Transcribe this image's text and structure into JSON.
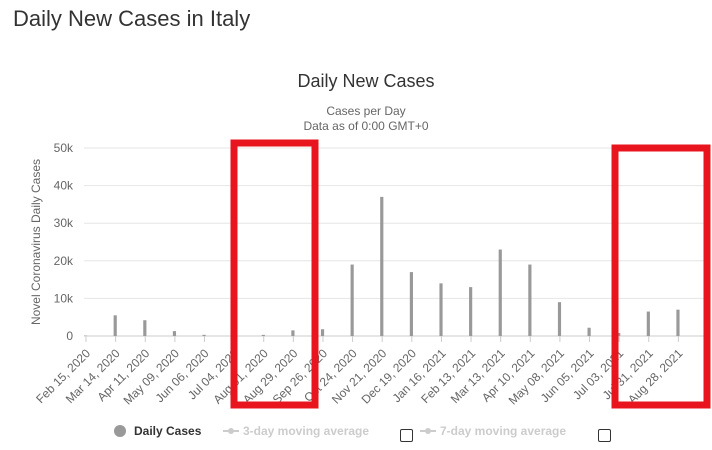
{
  "page": {
    "title": "Daily New Cases in Italy"
  },
  "legend": {
    "daily": "Daily Cases",
    "ma3": "3-day moving average",
    "ma7": "7-day moving average"
  },
  "colors": {
    "bar": "#999999",
    "highlight": "#e8141e",
    "grid": "#e6e6e6",
    "legend_disabled": "#cccccc"
  },
  "chart_data": {
    "type": "bar",
    "title": "Daily New Cases",
    "subtitle": [
      "Cases per Day",
      "Data as of 0:00 GMT+0"
    ],
    "ylabel": "Novel Coronavirus Daily Cases",
    "ylim": [
      0,
      50000
    ],
    "yticks": [
      "0",
      "10k",
      "20k",
      "30k",
      "40k",
      "50k"
    ],
    "xtick_labels": [
      "Feb 15, 2020",
      "Mar 14, 2020",
      "Apr 11, 2020",
      "May 09, 2020",
      "Jun 06, 2020",
      "Jul 04, 2020",
      "Aug 01, 2020",
      "Aug 29, 2020",
      "Sep 26, 2020",
      "Oct 24, 2020",
      "Nov 21, 2020",
      "Dec 19, 2020",
      "Jan 16, 2021",
      "Feb 13, 2021",
      "Mar 13, 2021",
      "Apr 10, 2021",
      "May 08, 2021",
      "Jun 05, 2021",
      "Jul 03, 2021",
      "Jul 31, 2021",
      "Aug 28, 2021"
    ],
    "series": [
      {
        "name": "Daily Cases",
        "x": [
          "2020-02-15",
          "2020-03-14",
          "2020-04-11",
          "2020-05-09",
          "2020-06-06",
          "2020-07-04",
          "2020-08-01",
          "2020-08-29",
          "2020-09-26",
          "2020-10-24",
          "2020-11-21",
          "2020-12-19",
          "2021-01-16",
          "2021-02-13",
          "2021-03-13",
          "2021-04-10",
          "2021-05-08",
          "2021-06-05",
          "2021-07-03",
          "2021-07-31",
          "2021-08-28"
        ],
        "values": [
          100,
          5500,
          4200,
          1300,
          300,
          200,
          300,
          1500,
          1800,
          19000,
          37000,
          17000,
          14000,
          13000,
          23000,
          19000,
          9000,
          2200,
          800,
          6500,
          7000
        ]
      }
    ]
  }
}
